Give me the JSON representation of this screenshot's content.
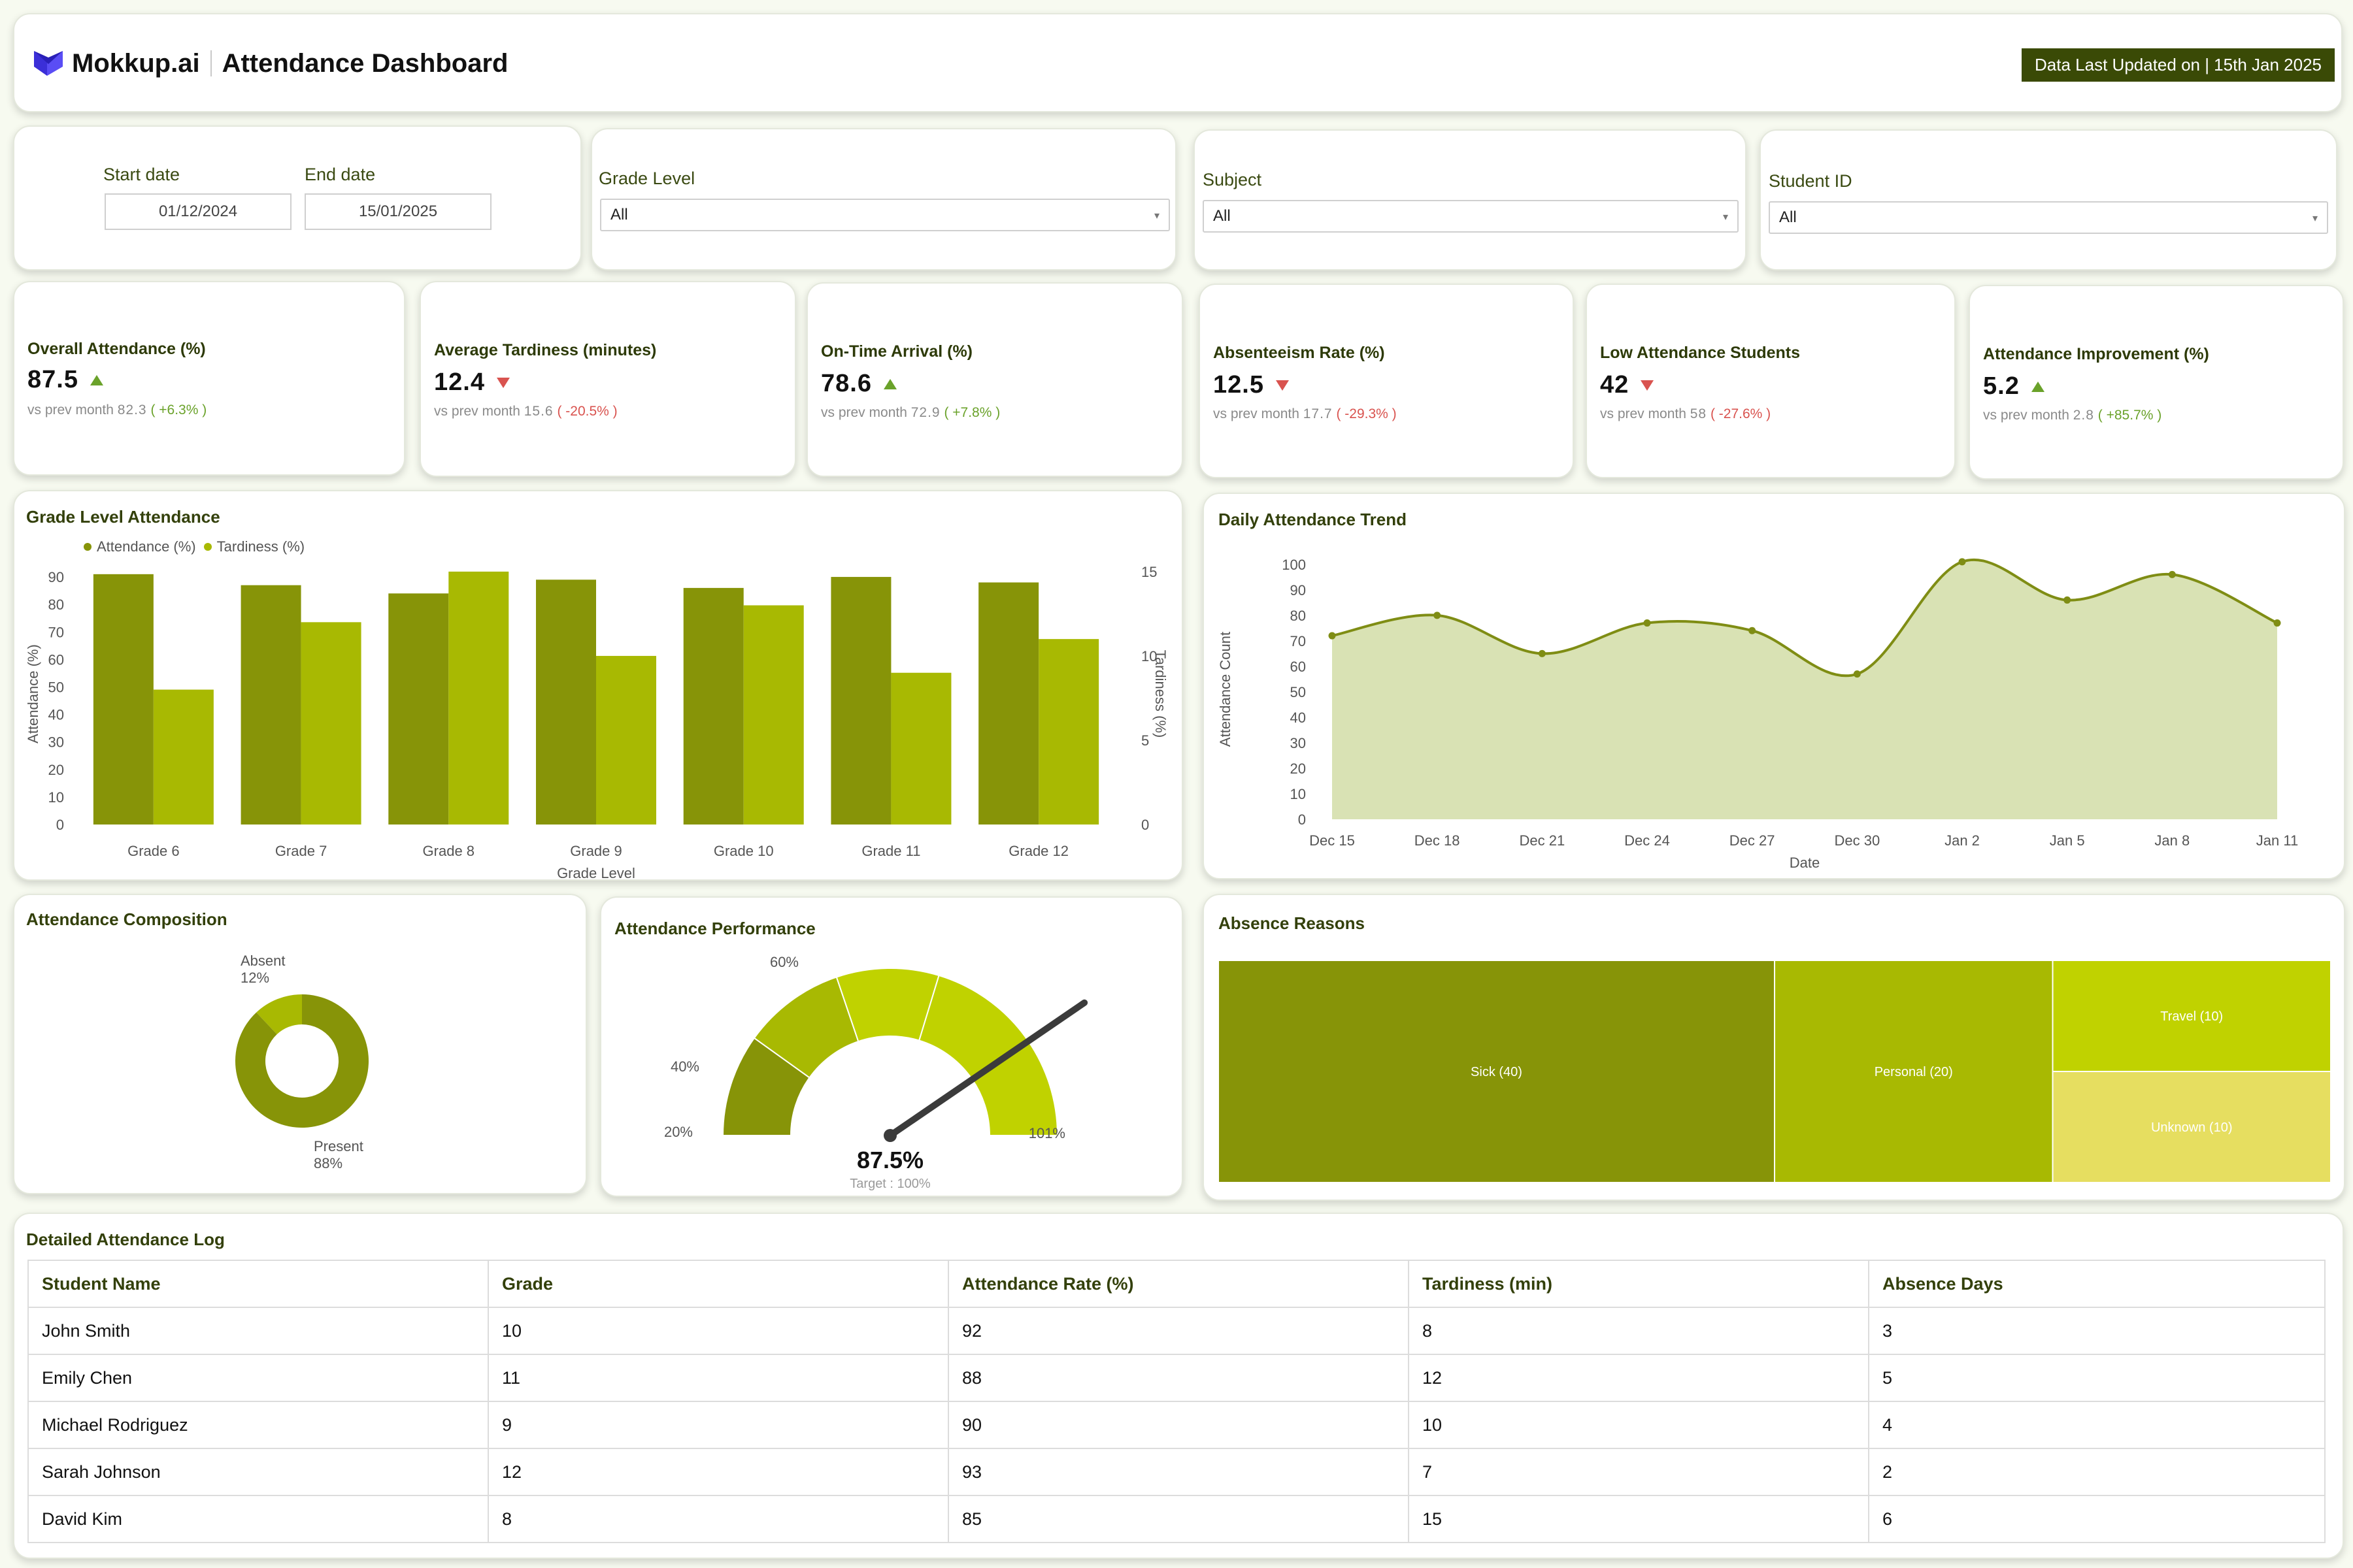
{
  "header": {
    "brand": "Mokkup.ai",
    "title": "Attendance Dashboard",
    "updated": "Data Last Updated on | 15th Jan 2025"
  },
  "filters": {
    "start_label": "Start date",
    "start_value": "01/12/2024",
    "end_label": "End date",
    "end_value": "15/01/2025",
    "grade_label": "Grade Level",
    "grade_value": "All",
    "subject_label": "Subject",
    "subject_value": "All",
    "student_label": "Student ID",
    "student_value": "All"
  },
  "kpis": [
    {
      "label": "Overall Attendance (%)",
      "value": "87.5",
      "trend": "up",
      "prev_label": "vs prev month",
      "prev": "82.3",
      "change": "( +6.3% )"
    },
    {
      "label": "Average Tardiness (minutes)",
      "value": "12.4",
      "trend": "down",
      "prev_label": "vs prev month",
      "prev": "15.6",
      "change": "( -20.5% )"
    },
    {
      "label": "On-Time Arrival (%)",
      "value": "78.6",
      "trend": "up",
      "prev_label": "vs prev month",
      "prev": "72.9",
      "change": "( +7.8% )"
    },
    {
      "label": "Absenteeism Rate (%)",
      "value": "12.5",
      "trend": "down",
      "prev_label": "vs prev month",
      "prev": "17.7",
      "change": "( -29.3% )"
    },
    {
      "label": "Low Attendance Students",
      "value": "42",
      "trend": "down",
      "prev_label": "vs prev month",
      "prev": "58",
      "change": "( -27.6% )"
    },
    {
      "label": "Attendance Improvement (%)",
      "value": "5.2",
      "trend": "up",
      "prev_label": "vs prev month",
      "prev": "2.8",
      "change": "( +85.7% )"
    }
  ],
  "charts": {
    "grade_title": "Grade Level Attendance",
    "trend_title": "Daily Attendance Trend",
    "composition_title": "Attendance Composition",
    "performance_title": "Attendance Performance",
    "absence_title": "Absence Reasons"
  },
  "colors": {
    "olive_dark": "#879408",
    "olive_light": "#a8b902",
    "lime": "#c0d200",
    "sand": "#e6de60",
    "area_fill": "#d9e2b4",
    "line": "#7f8d14"
  },
  "chart_data": [
    {
      "type": "bar",
      "title": "Grade Level Attendance",
      "categories": [
        "Grade 6",
        "Grade 7",
        "Grade 8",
        "Grade 9",
        "Grade 10",
        "Grade 11",
        "Grade 12"
      ],
      "series": [
        {
          "name": "Attendance (%)",
          "axis": "left",
          "values": [
            91,
            87,
            84,
            89,
            86,
            90,
            88
          ]
        },
        {
          "name": "Tardiness (%)",
          "axis": "right",
          "values": [
            8,
            12,
            15,
            10,
            13,
            9,
            11
          ]
        }
      ],
      "xlabel": "Grade Level",
      "ylabel": "Attendance (%)",
      "y2label": "Tardiness (%)",
      "yticks": [
        0,
        10,
        20,
        30,
        40,
        50,
        60,
        70,
        80,
        90
      ],
      "y2ticks": [
        0,
        5,
        10,
        15
      ],
      "legend": "top-left"
    },
    {
      "type": "area",
      "title": "Daily Attendance Trend",
      "x": [
        "Dec 15",
        "Dec 18",
        "Dec 21",
        "Dec 24",
        "Dec 27",
        "Dec 30",
        "Jan 2",
        "Jan 5",
        "Jan 8",
        "Jan 11"
      ],
      "values": [
        72,
        80,
        65,
        77,
        74,
        57,
        101,
        86,
        96,
        77
      ],
      "xlabel": "Date",
      "ylabel": "Attendance Count",
      "yticks": [
        0,
        10,
        20,
        30,
        40,
        50,
        60,
        70,
        80,
        90,
        100
      ]
    },
    {
      "type": "pie",
      "title": "Attendance Composition",
      "slices": [
        {
          "name": "Present",
          "value": 88,
          "label": "88%"
        },
        {
          "name": "Absent",
          "value": 12,
          "label": "12%"
        }
      ]
    },
    {
      "type": "gauge",
      "title": "Attendance Performance",
      "value": 87.5,
      "value_label": "87.5%",
      "target_label": "Target : 100%",
      "band_labels": [
        "20%",
        "40%",
        "60%",
        "101%"
      ],
      "bands": [
        20,
        40,
        60,
        101
      ]
    },
    {
      "type": "treemap",
      "title": "Absence Reasons",
      "items": [
        {
          "label": "Sick (40)",
          "value": 40
        },
        {
          "label": "Personal (20)",
          "value": 20
        },
        {
          "label": "Travel (10)",
          "value": 10
        },
        {
          "label": "Unknown (10)",
          "value": 10
        }
      ]
    }
  ],
  "table": {
    "title": "Detailed Attendance Log",
    "headers": [
      "Student Name",
      "Grade",
      "Attendance Rate (%)",
      "Tardiness (min)",
      "Absence Days"
    ],
    "rows": [
      [
        "John Smith",
        "10",
        "92",
        "8",
        "3"
      ],
      [
        "Emily Chen",
        "11",
        "88",
        "12",
        "5"
      ],
      [
        "Michael Rodriguez",
        "9",
        "90",
        "10",
        "4"
      ],
      [
        "Sarah Johnson",
        "12",
        "93",
        "7",
        "2"
      ],
      [
        "David Kim",
        "8",
        "85",
        "15",
        "6"
      ]
    ]
  }
}
